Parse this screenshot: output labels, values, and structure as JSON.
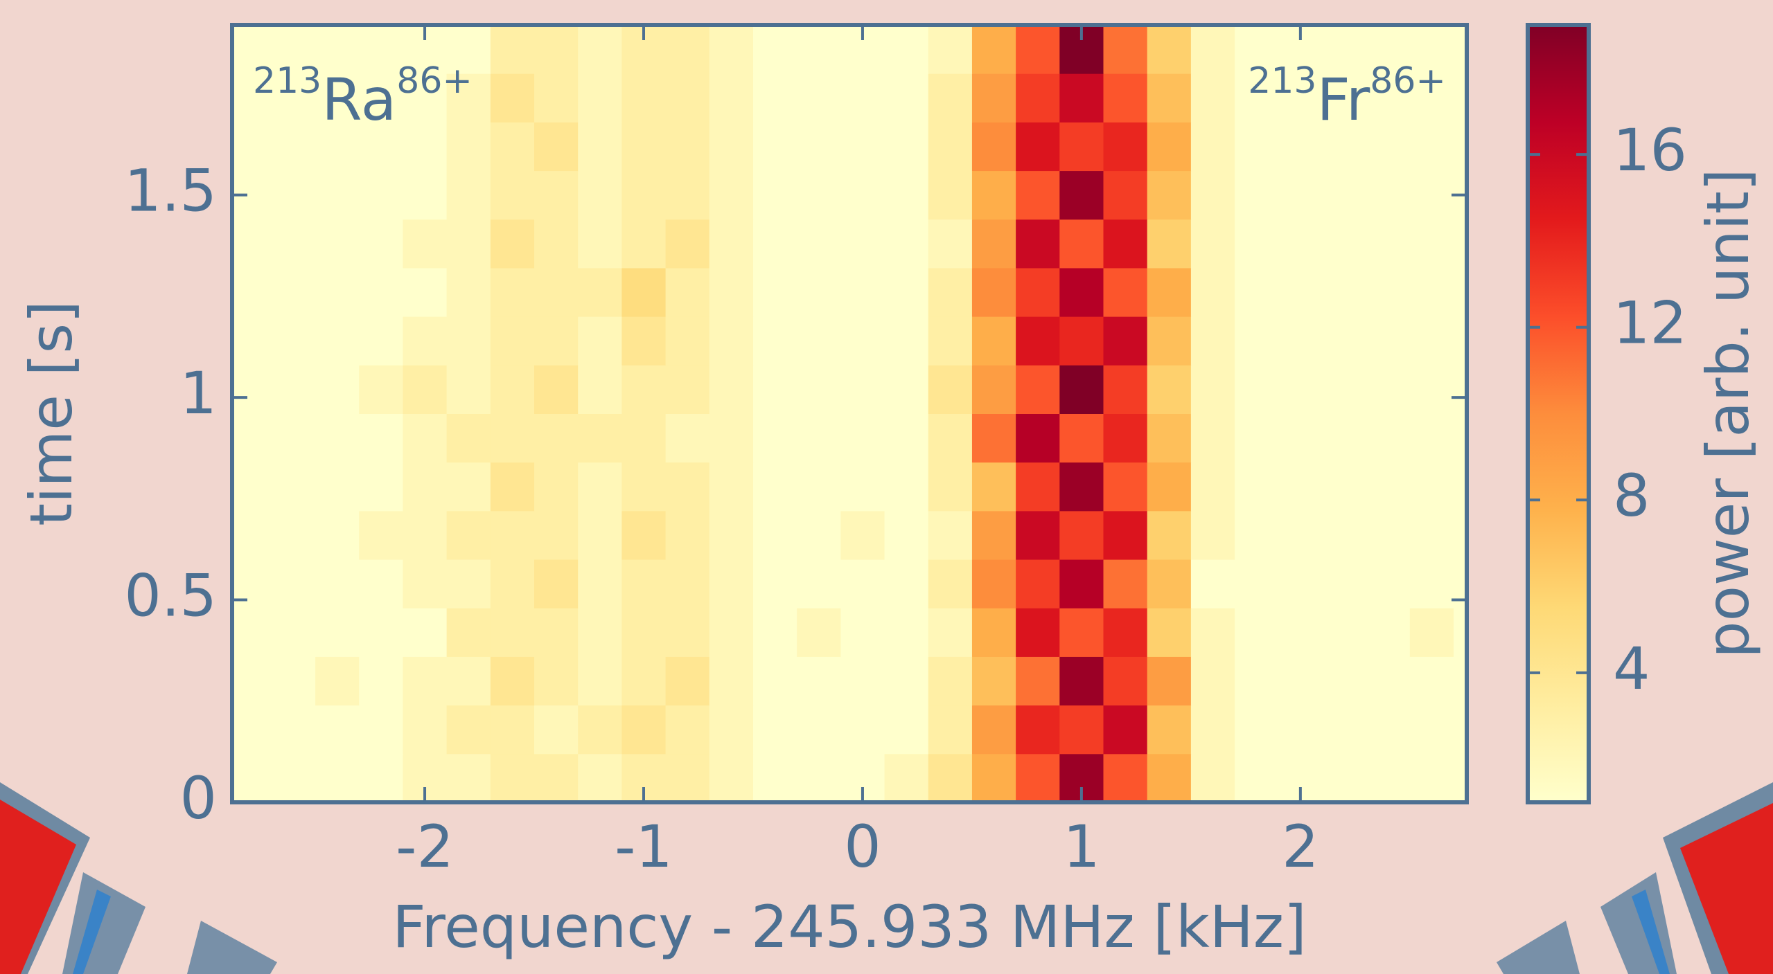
{
  "chart_data": {
    "type": "heatmap",
    "xlabel": "Frequency - 245.933 MHz [kHz]",
    "ylabel": "time [s]",
    "colorbar_label": "power [arb. unit]",
    "annotations": [
      {
        "mass": "213",
        "symbol": "Ra",
        "charge": "86+"
      },
      {
        "mass": "213",
        "symbol": "Fr",
        "charge": "86+"
      }
    ],
    "xlim": [
      -2.88,
      2.76
    ],
    "ylim": [
      0,
      1.92
    ],
    "zlim": [
      1,
      19
    ],
    "xticks": [
      -2,
      -1,
      0,
      1,
      2
    ],
    "yticks": [
      0,
      0.5,
      1,
      1.5
    ],
    "zticks": [
      4,
      8,
      12,
      16
    ],
    "colormap": [
      "#ffffcc",
      "#ffeda0",
      "#fed976",
      "#feb24c",
      "#fd8d3c",
      "#fc4e2a",
      "#e31a1c",
      "#bd0026",
      "#800026"
    ],
    "xbins": [
      -2.88,
      -2.7,
      -2.5,
      -2.3,
      -2.1,
      -1.9,
      -1.7,
      -1.5,
      -1.3,
      -1.1,
      -0.9,
      -0.7,
      -0.5,
      -0.3,
      -0.1,
      0.1,
      0.3,
      0.5,
      0.7,
      0.9,
      1.1,
      1.3,
      1.5,
      1.7,
      1.9,
      2.1,
      2.3,
      2.5,
      2.7,
      2.76
    ],
    "ybins": [
      0,
      0.12,
      0.24,
      0.36,
      0.48,
      0.6,
      0.72,
      0.84,
      0.96,
      1.08,
      1.2,
      1.32,
      1.44,
      1.56,
      1.68,
      1.8,
      1.92
    ],
    "values": [
      [
        1,
        1,
        1,
        1,
        2,
        2,
        3,
        3,
        2,
        3,
        3,
        2,
        1,
        1,
        1,
        2,
        4,
        8,
        12,
        18,
        12,
        8,
        2,
        1,
        1,
        1,
        1,
        1,
        1
      ],
      [
        1,
        1,
        1,
        1,
        2,
        3,
        3,
        2,
        3,
        4,
        3,
        2,
        1,
        1,
        1,
        1,
        3,
        9,
        14,
        13,
        16,
        7,
        2,
        1,
        1,
        1,
        1,
        1,
        1
      ],
      [
        1,
        1,
        2,
        1,
        2,
        2,
        4,
        3,
        2,
        3,
        4,
        2,
        1,
        1,
        1,
        1,
        3,
        7,
        11,
        18,
        13,
        9,
        2,
        1,
        1,
        1,
        1,
        1,
        1
      ],
      [
        1,
        1,
        1,
        1,
        1,
        3,
        3,
        3,
        2,
        3,
        3,
        2,
        1,
        2,
        1,
        1,
        2,
        8,
        15,
        12,
        14,
        6,
        2,
        1,
        1,
        1,
        1,
        2,
        1
      ],
      [
        1,
        1,
        1,
        1,
        2,
        2,
        3,
        4,
        2,
        3,
        3,
        2,
        1,
        1,
        1,
        1,
        3,
        10,
        13,
        17,
        11,
        7,
        1,
        1,
        1,
        1,
        1,
        1,
        1
      ],
      [
        1,
        1,
        1,
        2,
        2,
        3,
        3,
        3,
        2,
        4,
        3,
        2,
        1,
        1,
        2,
        1,
        2,
        9,
        16,
        13,
        15,
        6,
        2,
        1,
        1,
        1,
        1,
        1,
        1
      ],
      [
        1,
        1,
        1,
        1,
        2,
        2,
        4,
        3,
        2,
        3,
        3,
        2,
        1,
        1,
        1,
        1,
        3,
        7,
        13,
        18,
        12,
        8,
        2,
        1,
        1,
        1,
        1,
        1,
        1
      ],
      [
        1,
        1,
        1,
        1,
        2,
        3,
        3,
        3,
        3,
        3,
        2,
        2,
        1,
        1,
        1,
        1,
        3,
        11,
        17,
        12,
        14,
        7,
        2,
        1,
        1,
        1,
        1,
        1,
        1
      ],
      [
        1,
        1,
        1,
        2,
        3,
        2,
        3,
        4,
        2,
        3,
        3,
        2,
        1,
        1,
        1,
        1,
        4,
        9,
        12,
        19,
        13,
        6,
        2,
        1,
        1,
        1,
        1,
        1,
        1
      ],
      [
        1,
        1,
        1,
        1,
        2,
        2,
        3,
        3,
        2,
        4,
        3,
        2,
        1,
        1,
        1,
        1,
        3,
        8,
        15,
        14,
        16,
        7,
        2,
        1,
        1,
        1,
        1,
        1,
        1
      ],
      [
        1,
        1,
        1,
        1,
        1,
        2,
        3,
        3,
        3,
        5,
        3,
        2,
        1,
        1,
        1,
        1,
        3,
        10,
        13,
        17,
        12,
        8,
        2,
        1,
        1,
        1,
        1,
        1,
        1
      ],
      [
        1,
        1,
        1,
        1,
        2,
        2,
        4,
        3,
        2,
        3,
        4,
        2,
        1,
        1,
        1,
        1,
        2,
        9,
        16,
        12,
        15,
        6,
        2,
        1,
        1,
        1,
        1,
        1,
        1
      ],
      [
        1,
        1,
        1,
        1,
        1,
        2,
        3,
        3,
        2,
        3,
        3,
        2,
        1,
        1,
        1,
        1,
        3,
        8,
        12,
        18,
        13,
        7,
        2,
        1,
        1,
        1,
        1,
        1,
        1
      ],
      [
        1,
        1,
        1,
        1,
        1,
        2,
        3,
        4,
        2,
        3,
        3,
        2,
        1,
        1,
        1,
        1,
        3,
        10,
        15,
        13,
        14,
        8,
        2,
        1,
        1,
        1,
        1,
        1,
        1
      ],
      [
        1,
        1,
        1,
        1,
        1,
        2,
        4,
        3,
        2,
        3,
        3,
        2,
        1,
        1,
        1,
        1,
        3,
        9,
        13,
        16,
        12,
        7,
        2,
        1,
        1,
        1,
        1,
        1,
        1
      ],
      [
        1,
        1,
        1,
        1,
        1,
        1,
        3,
        3,
        2,
        3,
        3,
        2,
        1,
        1,
        1,
        1,
        2,
        8,
        12,
        19,
        11,
        6,
        2,
        1,
        1,
        1,
        1,
        1,
        1
      ]
    ]
  }
}
